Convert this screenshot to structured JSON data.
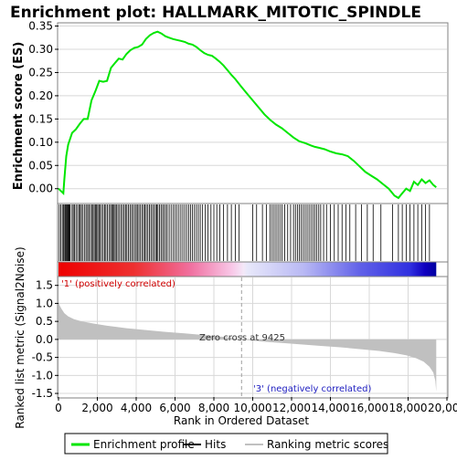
{
  "colors": {
    "es_line": "#00e600",
    "hits": "#000000",
    "metric_fill": "#c0c0c0",
    "pos_label": "#d00000",
    "neg_label": "#2020c0",
    "zero_line": "#a0a0a0",
    "grid": "#d8d8d8"
  },
  "chart_data": [
    {
      "type": "line",
      "title": "Enrichment plot: HALLMARK_MITOTIC_SPINDLE",
      "ylabel": "Enrichment score (ES)",
      "xlim": [
        0,
        20000
      ],
      "ylim": [
        -0.03,
        0.355
      ],
      "yticks": [
        0.0,
        0.05,
        0.1,
        0.15,
        0.2,
        0.25,
        0.3,
        0.35
      ],
      "ytick_labels": [
        "0.00",
        "0.05",
        "0.10",
        "0.15",
        "0.20",
        "0.25",
        "0.30",
        "0.35"
      ],
      "grid": true,
      "series": [
        {
          "name": "Enrichment profile",
          "x": [
            0,
            250,
            300,
            400,
            500,
            700,
            900,
            1100,
            1300,
            1500,
            1700,
            1900,
            2100,
            2300,
            2500,
            2700,
            2900,
            3100,
            3300,
            3500,
            3700,
            3900,
            4100,
            4300,
            4500,
            4700,
            4900,
            5100,
            5300,
            5500,
            5700,
            5900,
            6100,
            6300,
            6500,
            6700,
            6900,
            7100,
            7300,
            7500,
            7700,
            7900,
            8100,
            8300,
            8500,
            8700,
            8900,
            9100,
            9400,
            9700,
            10000,
            10300,
            10600,
            10900,
            11200,
            11500,
            11800,
            12100,
            12400,
            12700,
            13000,
            13200,
            13400,
            13700,
            14000,
            14300,
            14600,
            14900,
            15200,
            15500,
            15800,
            16100,
            16400,
            16700,
            17000,
            17300,
            17500,
            17700,
            17900,
            18100,
            18300,
            18500,
            18700,
            18900,
            19100,
            19300,
            19450
          ],
          "y": [
            0.0,
            -0.01,
            0.02,
            0.07,
            0.095,
            0.12,
            0.128,
            0.14,
            0.15,
            0.15,
            0.19,
            0.21,
            0.232,
            0.23,
            0.232,
            0.26,
            0.27,
            0.28,
            0.278,
            0.29,
            0.298,
            0.303,
            0.305,
            0.31,
            0.322,
            0.33,
            0.335,
            0.338,
            0.334,
            0.328,
            0.325,
            0.322,
            0.32,
            0.318,
            0.316,
            0.312,
            0.31,
            0.305,
            0.298,
            0.292,
            0.288,
            0.286,
            0.28,
            0.273,
            0.265,
            0.255,
            0.245,
            0.236,
            0.22,
            0.205,
            0.19,
            0.175,
            0.16,
            0.148,
            0.138,
            0.13,
            0.12,
            0.11,
            0.102,
            0.098,
            0.093,
            0.09,
            0.088,
            0.085,
            0.08,
            0.076,
            0.074,
            0.07,
            0.06,
            0.048,
            0.036,
            0.028,
            0.02,
            0.01,
            0.0,
            -0.015,
            -0.02,
            -0.01,
            0.0,
            -0.005,
            0.015,
            0.008,
            0.02,
            0.012,
            0.018,
            0.008,
            0.003
          ]
        }
      ]
    },
    {
      "type": "bar",
      "legend_entry": "Hits",
      "hits_x": [
        40,
        120,
        200,
        260,
        320,
        360,
        400,
        440,
        480,
        520,
        560,
        600,
        700,
        760,
        820,
        900,
        980,
        1060,
        1120,
        1180,
        1260,
        1350,
        1420,
        1500,
        1560,
        1640,
        1720,
        1780,
        1840,
        1900,
        1960,
        2020,
        2080,
        2140,
        2220,
        2300,
        2380,
        2440,
        2520,
        2600,
        2680,
        2740,
        2800,
        2860,
        2920,
        2980,
        3060,
        3140,
        3220,
        3300,
        3380,
        3450,
        3520,
        3600,
        3680,
        3760,
        3840,
        3920,
        4000,
        4060,
        4140,
        4220,
        4300,
        4380,
        4450,
        4520,
        4600,
        4680,
        4760,
        4840,
        4920,
        5000,
        5060,
        5120,
        5200,
        5280,
        5360,
        5440,
        5520,
        5600,
        5700,
        5800,
        5900,
        6000,
        6100,
        6200,
        6300,
        6400,
        6500,
        6600,
        6700,
        6800,
        6900,
        7000,
        7100,
        7200,
        7300,
        7420,
        7560,
        7700,
        7850,
        8000,
        8150,
        8300,
        8500,
        8700,
        8900,
        9100,
        9300,
        10000,
        10200,
        10500,
        10700,
        10900,
        11000,
        11100,
        11200,
        11300,
        11400,
        11500,
        11650,
        11800,
        11950,
        12100,
        12200,
        12300,
        12400,
        12500,
        12600,
        12700,
        12800,
        12900,
        13000,
        13100,
        13200,
        13300,
        13400,
        13500,
        13650,
        13800,
        14000,
        14200,
        14400,
        14600,
        14800,
        15000,
        15300,
        15600,
        15900,
        16200,
        16600,
        17200,
        17500,
        17700,
        17900,
        18100,
        18300,
        18500,
        18700,
        18900,
        19100
      ],
      "heatmap_stops": [
        {
          "pos": 0.0,
          "color": "#ee0000"
        },
        {
          "pos": 0.2,
          "color": "#ee3030"
        },
        {
          "pos": 0.35,
          "color": "#f070a0"
        },
        {
          "pos": 0.46,
          "color": "#f8c8e8"
        },
        {
          "pos": 0.49,
          "color": "#f4e8f8"
        },
        {
          "pos": 0.5,
          "color": "#e8e8fa"
        },
        {
          "pos": 0.65,
          "color": "#b8b8f4"
        },
        {
          "pos": 0.8,
          "color": "#6060e8"
        },
        {
          "pos": 0.93,
          "color": "#3030e0"
        },
        {
          "pos": 0.97,
          "color": "#1000c0"
        },
        {
          "pos": 1.0,
          "color": "#0000a0"
        }
      ]
    },
    {
      "type": "area",
      "ylabel": "Ranked list metric (Signal2Noise)",
      "xlabel": "Rank in Ordered Dataset",
      "xlim": [
        0,
        20000
      ],
      "ylim": [
        -1.6,
        1.72
      ],
      "yticks": [
        -1.5,
        -1.0,
        -0.5,
        0.0,
        0.5,
        1.0,
        1.5
      ],
      "ytick_labels": [
        "-1.5",
        "-1.0",
        "-0.5",
        "0.0",
        "0.5",
        "1.0",
        "1.5"
      ],
      "xticks": [
        0,
        2000,
        4000,
        6000,
        8000,
        10000,
        12000,
        14000,
        16000,
        18000,
        20000
      ],
      "xtick_labels": [
        "0",
        "2,000",
        "4,000",
        "6,000",
        "8,000",
        "10,000",
        "12,000",
        "14,000",
        "16,000",
        "18,000",
        "20,000"
      ],
      "grid": true,
      "series": [
        {
          "name": "Ranking metric scores",
          "x": [
            0,
            50,
            150,
            300,
            500,
            800,
            1200,
            1800,
            2500,
            3500,
            4500,
            5500,
            6500,
            7500,
            8500,
            9425,
            10500,
            11500,
            12500,
            13500,
            14500,
            15500,
            16500,
            17300,
            17900,
            18400,
            18800,
            19100,
            19300,
            19400,
            19450
          ],
          "y": [
            1.05,
            0.95,
            0.85,
            0.73,
            0.64,
            0.56,
            0.5,
            0.44,
            0.38,
            0.31,
            0.26,
            0.21,
            0.17,
            0.12,
            0.07,
            0.0,
            -0.06,
            -0.1,
            -0.14,
            -0.18,
            -0.22,
            -0.27,
            -0.32,
            -0.38,
            -0.44,
            -0.52,
            -0.62,
            -0.76,
            -0.92,
            -1.15,
            -1.45
          ]
        }
      ],
      "annotations": {
        "zero_cross": "Zero cross at 9425",
        "zero_cross_rank": 9425,
        "positive": "'1' (positively correlated)",
        "negative": "'3' (negatively correlated)"
      }
    }
  ],
  "legend": {
    "items": [
      {
        "label": "Enrichment profile",
        "color": "#00e600"
      },
      {
        "label": "Hits",
        "color": "#000000"
      },
      {
        "label": "Ranking metric scores",
        "color": "#c0c0c0"
      }
    ]
  }
}
